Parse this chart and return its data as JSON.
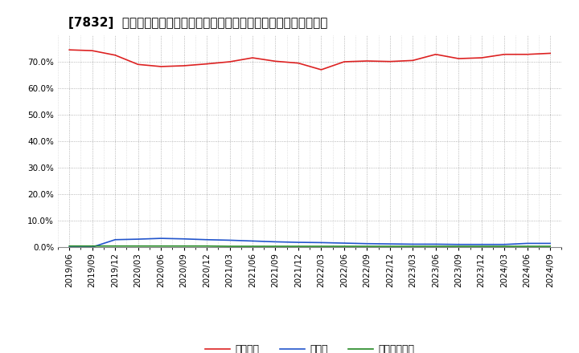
{
  "title": "[7832]  自己資本、のれん、繰延税金資産の総資産に対する比率の推移",
  "dates": [
    "2019/06",
    "2019/09",
    "2019/12",
    "2020/03",
    "2020/06",
    "2020/09",
    "2020/12",
    "2021/03",
    "2021/06",
    "2021/09",
    "2021/12",
    "2022/03",
    "2022/06",
    "2022/09",
    "2022/12",
    "2023/03",
    "2023/06",
    "2023/09",
    "2023/12",
    "2024/03",
    "2024/06",
    "2024/09"
  ],
  "equity": [
    74.5,
    74.2,
    72.5,
    69.0,
    68.2,
    68.5,
    69.2,
    70.0,
    71.5,
    70.2,
    69.5,
    67.0,
    70.0,
    70.3,
    70.1,
    70.5,
    72.8,
    71.2,
    71.5,
    72.8,
    72.8,
    73.2
  ],
  "goodwill": [
    0.0,
    0.0,
    2.8,
    3.0,
    3.3,
    3.1,
    2.8,
    2.6,
    2.3,
    2.0,
    1.8,
    1.7,
    1.5,
    1.3,
    1.2,
    1.1,
    1.1,
    1.0,
    1.0,
    1.0,
    1.4,
    1.4
  ],
  "deferred_tax": [
    0.4,
    0.4,
    0.4,
    0.4,
    0.4,
    0.4,
    0.4,
    0.3,
    0.3,
    0.3,
    0.3,
    0.3,
    0.3,
    0.3,
    0.3,
    0.3,
    0.3,
    0.3,
    0.3,
    0.3,
    0.3,
    0.3
  ],
  "equity_color": "#dd2222",
  "goodwill_color": "#2255cc",
  "deferred_tax_color": "#228822",
  "bg_color": "#ffffff",
  "plot_bg_color": "#ffffff",
  "grid_color": "#999999",
  "legend_labels": [
    "自己資本",
    "のれん",
    "繰延税金資産"
  ],
  "ylim": [
    0.0,
    80.0
  ],
  "yticks": [
    0.0,
    10.0,
    20.0,
    30.0,
    40.0,
    50.0,
    60.0,
    70.0
  ],
  "title_fontsize": 11,
  "tick_fontsize": 7.5,
  "legend_fontsize": 9
}
